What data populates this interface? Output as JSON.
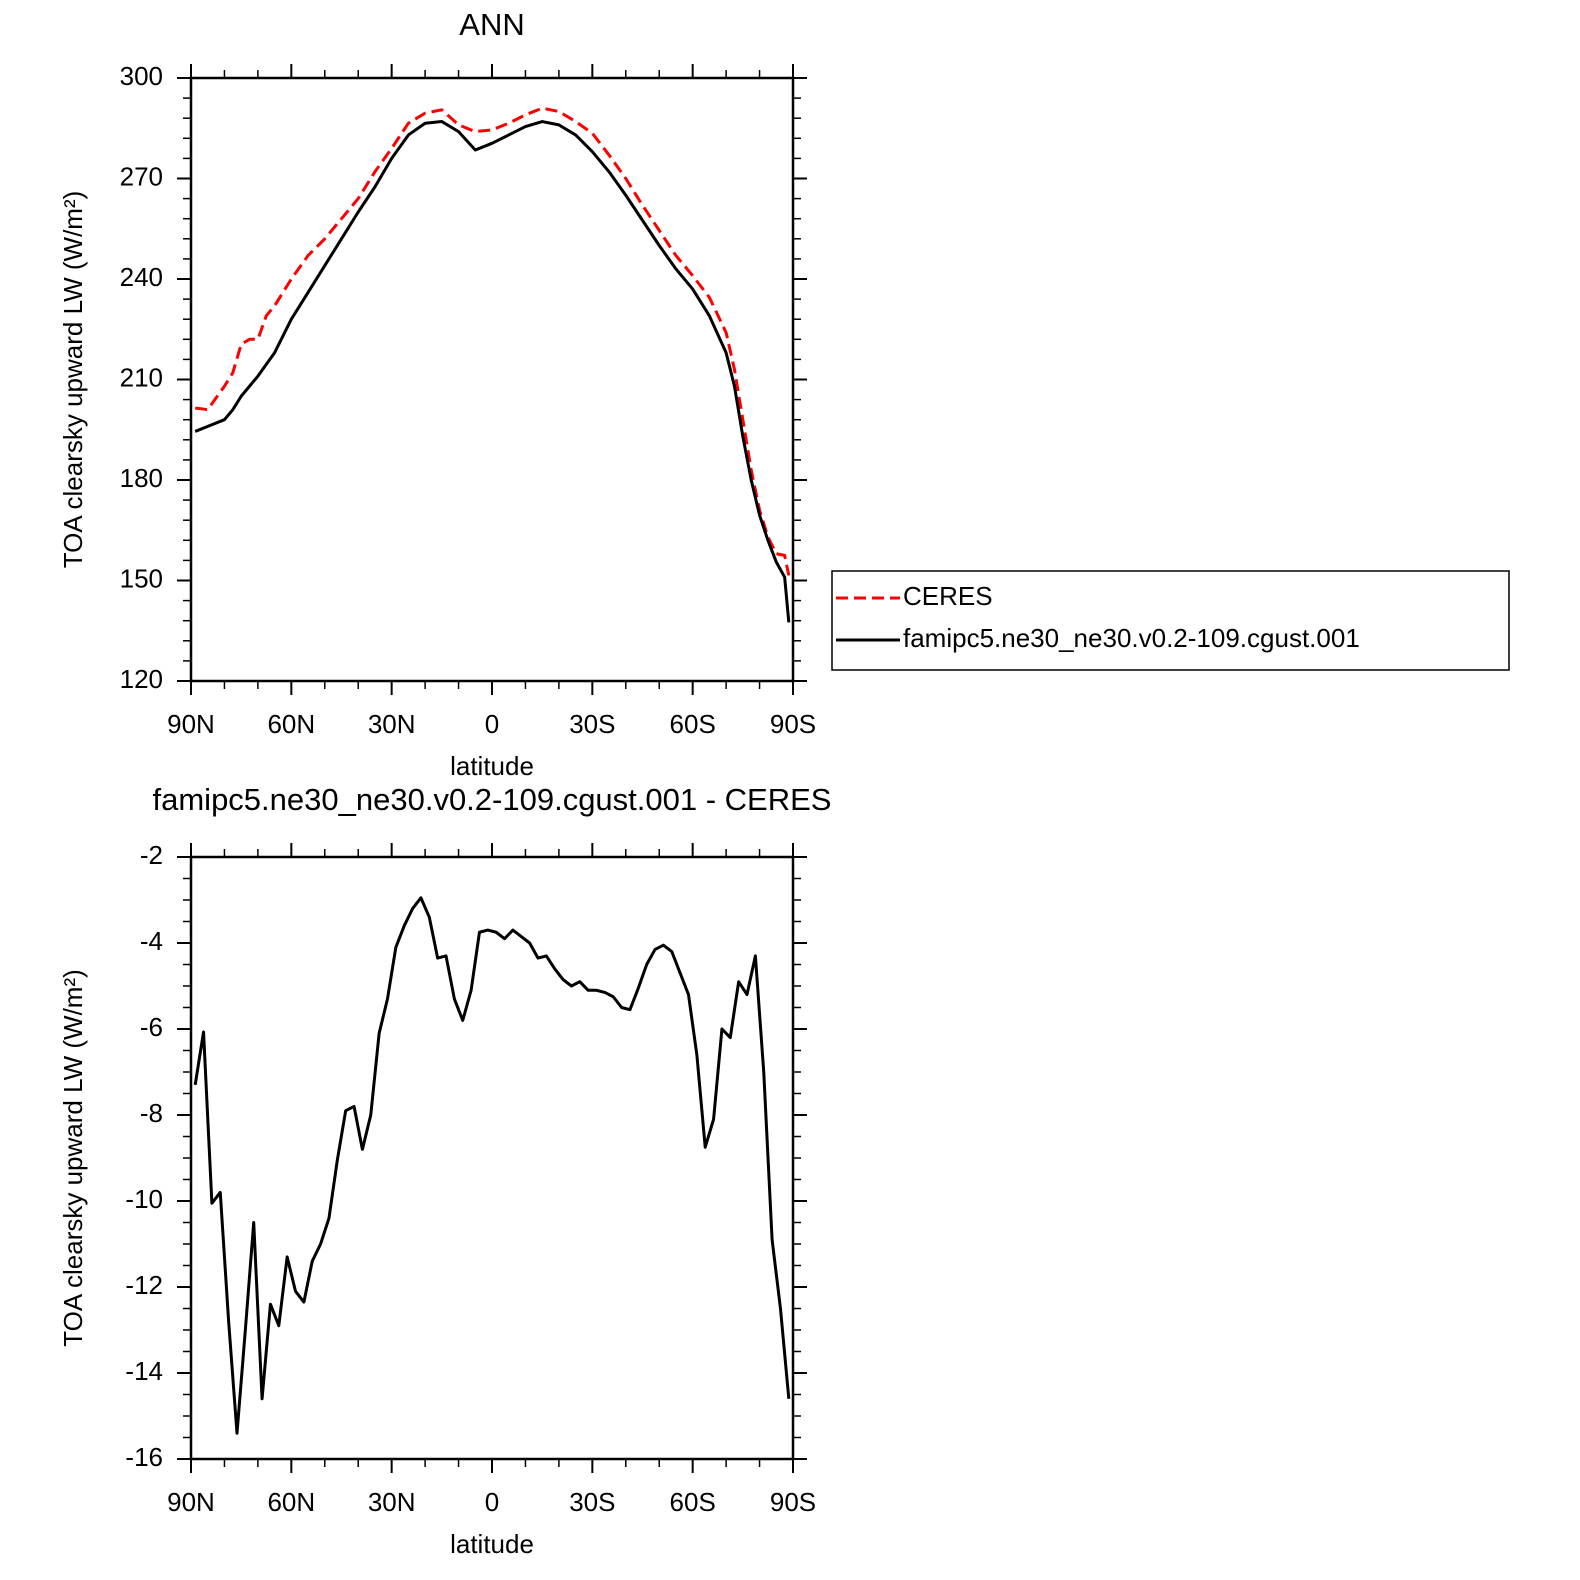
{
  "chart_data": [
    {
      "type": "line",
      "title": "ANN",
      "xlabel": "latitude",
      "ylabel": "TOA clearsky upward LW (W/m²)",
      "x": [
        88.75,
        85,
        80,
        77.5,
        75,
        72.5,
        70,
        67.5,
        65,
        60,
        55,
        50,
        45,
        40,
        35,
        30,
        25,
        20,
        15,
        10,
        5,
        0,
        -5,
        -10,
        -15,
        -20,
        -25,
        -30,
        -35,
        -40,
        -45,
        -50,
        -55,
        -60,
        -65,
        -70,
        -72.5,
        -75,
        -77.5,
        -80,
        -82.5,
        -85,
        -87.5,
        -88.75
      ],
      "series": [
        {
          "name": "CERES",
          "color": "#ff0000",
          "dash": true,
          "values": [
            201.5,
            201,
            208,
            212,
            220.5,
            222,
            222,
            229,
            232,
            240,
            247,
            252,
            258,
            264,
            272,
            279,
            286.5,
            289.5,
            290.5,
            286,
            284,
            284.5,
            286.5,
            289,
            291,
            290,
            287,
            283.5,
            277,
            270,
            262,
            254.5,
            247,
            241,
            234.5,
            224,
            213,
            198,
            183,
            171,
            163,
            158,
            157.5,
            151.5
          ]
        },
        {
          "name": "famipc5.ne30_ne30.v0.2-109.cgust.001",
          "color": "#000000",
          "dash": false,
          "values": [
            194.5,
            196,
            198,
            201,
            205,
            208,
            211,
            214.5,
            218,
            228,
            236,
            244,
            252,
            260,
            267.5,
            276,
            283,
            286.5,
            287,
            284,
            278.5,
            280.5,
            283,
            285.5,
            287,
            286,
            283,
            278,
            272,
            265,
            257.5,
            250,
            243,
            237,
            229,
            218,
            208,
            193,
            180,
            169.5,
            162,
            155.5,
            151,
            137.5
          ]
        }
      ],
      "xlim": [
        90,
        -90
      ],
      "xticks": [
        {
          "value": 90,
          "label": "90N"
        },
        {
          "value": 60,
          "label": "60N"
        },
        {
          "value": 30,
          "label": "30N"
        },
        0,
        {
          "value": -30,
          "label": "30S"
        },
        {
          "value": -60,
          "label": "60S"
        },
        {
          "value": -90,
          "label": "90S"
        }
      ],
      "xminorticks": [
        80,
        70,
        50,
        40,
        20,
        10,
        -10,
        -20,
        -40,
        -50,
        -70,
        -80
      ],
      "ylim": [
        120,
        300
      ],
      "yticks": [
        120,
        150,
        180,
        210,
        240,
        270,
        300
      ],
      "yminorticks": [
        126,
        132,
        138,
        144,
        156,
        162,
        168,
        174,
        186,
        192,
        198,
        204,
        216,
        222,
        228,
        234,
        246,
        252,
        258,
        264,
        276,
        282,
        288,
        294
      ],
      "legend": "right"
    },
    {
      "type": "line",
      "title": "famipc5.ne30_ne30.v0.2-109.cgust.001 - CERES",
      "xlabel": "latitude",
      "ylabel": "TOA clearsky upward LW (W/m²)",
      "x": [
        88.75,
        86.25,
        83.75,
        81.25,
        78.75,
        76.25,
        73.75,
        71.25,
        68.75,
        66.25,
        63.75,
        61.25,
        58.75,
        56.25,
        53.75,
        51.25,
        48.75,
        46.25,
        43.75,
        41.25,
        38.75,
        36.25,
        33.75,
        31.25,
        28.75,
        26.25,
        23.75,
        21.25,
        18.75,
        16.25,
        13.75,
        11.25,
        8.75,
        6.25,
        3.75,
        1.25,
        -1.25,
        -3.75,
        -6.25,
        -8.75,
        -11.25,
        -13.75,
        -16.25,
        -18.75,
        -21.25,
        -23.75,
        -26.25,
        -28.75,
        -31.25,
        -33.75,
        -36.25,
        -38.75,
        -41.25,
        -43.75,
        -46.25,
        -48.75,
        -51.25,
        -53.75,
        -56.25,
        -58.75,
        -61.25,
        -63.75,
        -66.25,
        -68.75,
        -71.25,
        -73.75,
        -76.25,
        -78.75,
        -81.25,
        -83.75,
        -86.25,
        -88.75
      ],
      "series": [
        {
          "color": "#000000",
          "dash": false,
          "values": [
            -7.3,
            -6.07,
            -10.05,
            -9.8,
            -12.8,
            -15.4,
            -13,
            -10.5,
            -14.6,
            -12.4,
            -12.9,
            -11.3,
            -12.1,
            -12.35,
            -11.4,
            -11,
            -10.4,
            -9.05,
            -7.9,
            -7.8,
            -8.8,
            -8,
            -6.1,
            -5.3,
            -4.1,
            -3.6,
            -3.2,
            -2.95,
            -3.4,
            -4.35,
            -4.3,
            -5.3,
            -5.8,
            -5.1,
            -3.75,
            -3.7,
            -3.75,
            -3.9,
            -3.7,
            -3.85,
            -4,
            -4.35,
            -4.3,
            -4.6,
            -4.85,
            -5,
            -4.9,
            -5.1,
            -5.1,
            -5.15,
            -5.25,
            -5.5,
            -5.55,
            -5.05,
            -4.5,
            -4.15,
            -4.05,
            -4.2,
            -4.7,
            -5.2,
            -6.6,
            -8.75,
            -8.1,
            -6,
            -6.2,
            -4.9,
            -5.2,
            -4.3,
            -7,
            -10.9,
            -12.5,
            -14.6
          ]
        }
      ],
      "xlim": [
        90,
        -90
      ],
      "xticks": [
        {
          "value": 90,
          "label": "90N"
        },
        {
          "value": 60,
          "label": "60N"
        },
        {
          "value": 30,
          "label": "30N"
        },
        0,
        {
          "value": -30,
          "label": "30S"
        },
        {
          "value": -60,
          "label": "60S"
        },
        {
          "value": -90,
          "label": "90S"
        }
      ],
      "xminorticks": [
        80,
        70,
        50,
        40,
        20,
        10,
        -10,
        -20,
        -40,
        -50,
        -70,
        -80
      ],
      "ylim": [
        -16,
        -2
      ],
      "yticks": [
        -16,
        -14,
        -12,
        -10,
        -8,
        -6,
        -4,
        -2
      ],
      "yminorticks": [
        -15.5,
        -15,
        -14.5,
        -13.5,
        -13,
        -12.5,
        -11.5,
        -11,
        -10.5,
        -9.5,
        -9,
        -8.5,
        -7.5,
        -7,
        -6.5,
        -5.5,
        -5,
        -4.5,
        -3.5,
        -3,
        -2.5
      ]
    }
  ]
}
